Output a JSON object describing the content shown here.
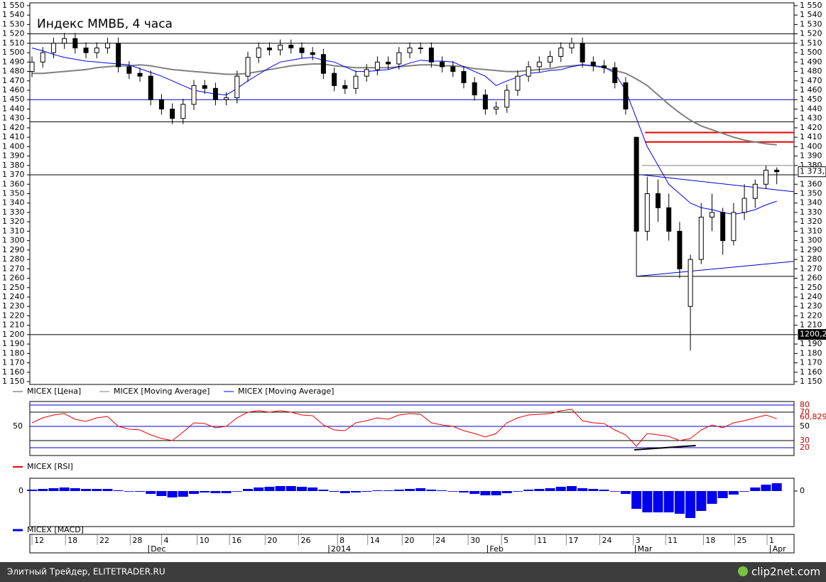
{
  "chart_data": [
    {
      "type": "candlestick",
      "title": "Индекс ММВБ, 4 часа",
      "xlim": [
        -0.2,
        70.6
      ],
      "xticks": [
        {
          "value": 0.2,
          "label": "12"
        },
        {
          "value": 3.3,
          "label": "18"
        },
        {
          "value": 6.25,
          "label": "22"
        },
        {
          "value": 9.3,
          "label": "28"
        },
        {
          "value": 12.2,
          "label": "4"
        },
        {
          "value": 15.5,
          "label": "10"
        },
        {
          "value": 18.5,
          "label": "16"
        },
        {
          "value": 21.8,
          "label": "20"
        },
        {
          "value": 24.9,
          "label": "26"
        },
        {
          "value": 28.5,
          "label": "8"
        },
        {
          "value": 31.3,
          "label": "14"
        },
        {
          "value": 34.5,
          "label": "20"
        },
        {
          "value": 37.4,
          "label": "24"
        },
        {
          "value": 40.6,
          "label": "30"
        },
        {
          "value": 43.7,
          "label": "5"
        },
        {
          "value": 46.8,
          "label": "11"
        },
        {
          "value": 49.7,
          "label": "17"
        },
        {
          "value": 52.8,
          "label": "24"
        },
        {
          "value": 55.9,
          "label": "3"
        },
        {
          "value": 58.9,
          "label": "11"
        },
        {
          "value": 62.4,
          "label": "18"
        },
        {
          "value": 65.3,
          "label": "25"
        },
        {
          "value": 68.3,
          "label": "1"
        }
      ],
      "month_ticks": [
        {
          "value": 11,
          "label": "Dec"
        },
        {
          "value": 27.7,
          "label": "2014"
        },
        {
          "value": 42.4,
          "label": "Feb"
        },
        {
          "value": 56.1,
          "label": "Mar"
        },
        {
          "value": 68.6,
          "label": "Apr"
        }
      ],
      "ylim": [
        1147,
        1553
      ],
      "yticks": [
        {
          "value": 1550,
          "label": "1 550"
        },
        {
          "value": 1540,
          "label": "1 540"
        },
        {
          "value": 1530,
          "label": "1 530"
        },
        {
          "value": 1520,
          "label": "1 520"
        },
        {
          "value": 1510,
          "label": "1 510"
        },
        {
          "value": 1500,
          "label": "1 500"
        },
        {
          "value": 1490,
          "label": "1 490"
        },
        {
          "value": 1480,
          "label": "1 480"
        },
        {
          "value": 1470,
          "label": "1 470"
        },
        {
          "value": 1460,
          "label": "1 460"
        },
        {
          "value": 1450,
          "label": "1 450"
        },
        {
          "value": 1440,
          "label": "1 440"
        },
        {
          "value": 1430,
          "label": "1 430"
        },
        {
          "value": 1420,
          "label": "1 420"
        },
        {
          "value": 1410,
          "label": "1 410"
        },
        {
          "value": 1400,
          "label": "1 400"
        },
        {
          "value": 1390,
          "label": "1 390"
        },
        {
          "value": 1380,
          "label": "1 380"
        },
        {
          "value": 1370,
          "label": "1 370"
        },
        {
          "value": 1360,
          "label": "1 360"
        },
        {
          "value": 1350,
          "label": "1 350"
        },
        {
          "value": 1340,
          "label": "1 340"
        },
        {
          "value": 1330,
          "label": "1 330"
        },
        {
          "value": 1320,
          "label": "1 320"
        },
        {
          "value": 1310,
          "label": "1 310"
        },
        {
          "value": 1300,
          "label": "1 300"
        },
        {
          "value": 1290,
          "label": "1 290"
        },
        {
          "value": 1280,
          "label": "1 280"
        },
        {
          "value": 1270,
          "label": "1 270"
        },
        {
          "value": 1260,
          "label": "1 260"
        },
        {
          "value": 1250,
          "label": "1 250"
        },
        {
          "value": 1240,
          "label": "1 240"
        },
        {
          "value": 1230,
          "label": "1 230"
        },
        {
          "value": 1220,
          "label": "1 220"
        },
        {
          "value": 1210,
          "label": "1 210"
        },
        {
          "value": 1200,
          "label": "1 200"
        },
        {
          "value": 1190,
          "label": "1 190"
        },
        {
          "value": 1180,
          "label": "1 180"
        },
        {
          "value": 1170,
          "label": "1 170"
        },
        {
          "value": 1160,
          "label": "1 160"
        },
        {
          "value": 1150,
          "label": "1 150"
        }
      ],
      "candles": {
        "name": "MICEX [Цена]",
        "color": "#555555",
        "open": [
          1480,
          1490,
          1500,
          1510,
          1515,
          1505,
          1500,
          1505,
          1510,
          1485,
          1478,
          1475,
          1450,
          1440,
          1430,
          1445,
          1465,
          1462,
          1450,
          1452,
          1475,
          1495,
          1505,
          1503,
          1508,
          1505,
          1500,
          1498,
          1478,
          1465,
          1462,
          1475,
          1482,
          1490,
          1488,
          1500,
          1505,
          1505,
          1490,
          1485,
          1480,
          1468,
          1455,
          1440,
          1442,
          1460,
          1475,
          1485,
          1490,
          1496,
          1505,
          1510,
          1490,
          1486,
          1484,
          1468,
          1410,
          1310,
          1350,
          1335,
          1310,
          1230,
          1280,
          1325,
          1330,
          1300,
          1330,
          1345,
          1360,
          1375
        ],
        "high": [
          1496,
          1506,
          1516,
          1521,
          1521,
          1511,
          1511,
          1516,
          1516,
          1491,
          1484,
          1481,
          1456,
          1446,
          1451,
          1471,
          1471,
          1468,
          1458,
          1481,
          1501,
          1511,
          1511,
          1514,
          1514,
          1511,
          1506,
          1504,
          1484,
          1471,
          1481,
          1488,
          1496,
          1496,
          1506,
          1511,
          1511,
          1511,
          1496,
          1491,
          1486,
          1474,
          1461,
          1448,
          1466,
          1481,
          1491,
          1496,
          1502,
          1511,
          1516,
          1516,
          1496,
          1492,
          1490,
          1474,
          1410,
          1368,
          1365,
          1350,
          1320,
          1285,
          1340,
          1350,
          1335,
          1340,
          1360,
          1365,
          1380,
          1378
        ],
        "low": [
          1474,
          1484,
          1494,
          1504,
          1499,
          1494,
          1494,
          1499,
          1479,
          1472,
          1469,
          1444,
          1434,
          1424,
          1424,
          1439,
          1456,
          1444,
          1444,
          1446,
          1469,
          1489,
          1497,
          1497,
          1499,
          1494,
          1492,
          1472,
          1459,
          1456,
          1456,
          1469,
          1476,
          1482,
          1482,
          1494,
          1499,
          1484,
          1479,
          1474,
          1462,
          1449,
          1434,
          1434,
          1436,
          1454,
          1469,
          1479,
          1484,
          1490,
          1499,
          1484,
          1480,
          1478,
          1462,
          1434,
          1262,
          1300,
          1320,
          1300,
          1260,
          1183,
          1275,
          1310,
          1285,
          1295,
          1322,
          1335,
          1355,
          1360
        ],
        "close": [
          1490,
          1500,
          1510,
          1515,
          1505,
          1500,
          1505,
          1510,
          1485,
          1478,
          1475,
          1450,
          1440,
          1430,
          1445,
          1465,
          1462,
          1450,
          1452,
          1475,
          1495,
          1505,
          1503,
          1508,
          1505,
          1500,
          1498,
          1478,
          1465,
          1462,
          1475,
          1482,
          1490,
          1488,
          1500,
          1505,
          1505,
          1490,
          1485,
          1480,
          1468,
          1455,
          1440,
          1442,
          1460,
          1475,
          1485,
          1490,
          1496,
          1505,
          1510,
          1490,
          1486,
          1484,
          1468,
          1440,
          1310,
          1350,
          1335,
          1310,
          1270,
          1280,
          1325,
          1330,
          1300,
          1330,
          1345,
          1360,
          1375,
          1373.3
        ]
      },
      "series": [
        {
          "name": "MICEX [Moving Average]",
          "color": "#808080",
          "values": [
            1478,
            1478,
            1479,
            1480,
            1481,
            1482,
            1484,
            1485,
            1486,
            1486,
            1487,
            1486,
            1484,
            1482,
            1481,
            1480,
            1479,
            1478,
            1477,
            1477,
            1478,
            1480,
            1482,
            1484,
            1486,
            1487,
            1488,
            1488,
            1486,
            1485,
            1484,
            1484,
            1484,
            1484,
            1485,
            1486,
            1487,
            1487,
            1486,
            1486,
            1485,
            1483,
            1482,
            1481,
            1480,
            1480,
            1481,
            1482,
            1483,
            1485,
            1486,
            1487,
            1486,
            1484,
            1481,
            1478,
            1472,
            1465,
            1455,
            1445,
            1436,
            1428,
            1422,
            1418,
            1414,
            1410,
            1407,
            1405,
            1403,
            1402
          ]
        },
        {
          "name": "MICEX [Moving Average]",
          "color": "#0000ff",
          "values": [
            1505,
            1502,
            1498,
            1495,
            1493,
            1491,
            1490,
            1489,
            1488,
            1487,
            1483,
            1479,
            1475,
            1470,
            1465,
            1460,
            1458,
            1456,
            1455,
            1462,
            1470,
            1477,
            1484,
            1490,
            1492,
            1494,
            1495,
            1492,
            1490,
            1485,
            1480,
            1480,
            1481,
            1482,
            1485,
            1489,
            1492,
            1491,
            1491,
            1490,
            1485,
            1480,
            1475,
            1465,
            1470,
            1474,
            1478,
            1479,
            1481,
            1482,
            1485,
            1487,
            1486,
            1485,
            1478,
            1460,
            1430,
            1400,
            1380,
            1360,
            1350,
            1340,
            1335,
            1333,
            1330,
            1328,
            1330,
            1333,
            1338,
            1342
          ]
        }
      ],
      "levels": [
        {
          "value": 1520,
          "color": "#000000",
          "x0": -0.2
        },
        {
          "value": 1510,
          "color": "#000000",
          "x0": -0.2
        },
        {
          "value": 1450,
          "color": "#0000cc",
          "x0": -0.2
        },
        {
          "value": 1426.5,
          "color": "#000000",
          "x0": -0.2
        },
        {
          "value": 1370,
          "color": "#000000",
          "x0": -0.2
        },
        {
          "value": 1200,
          "color": "#000000",
          "x0": -0.2
        },
        {
          "value": 1380,
          "color": "#808080",
          "x0": 56.5
        },
        {
          "value": 1415,
          "color": "#ee0000",
          "x0": 56.8
        },
        {
          "value": 1405,
          "color": "#ee0000",
          "x0": 56.8
        }
      ],
      "trendlines": [
        {
          "x": [
            56.5,
            70.6
          ],
          "y": [
            1370,
            1352
          ],
          "color": "#0000cc"
        },
        {
          "x": [
            56,
            70.6
          ],
          "y": [
            1262,
            1278
          ],
          "color": "#0000cc"
        },
        {
          "x": [
            56,
            70.6
          ],
          "y": [
            1262,
            1262
          ],
          "color": "#000000"
        }
      ],
      "price_tags": [
        {
          "value": 1373.3,
          "label": "1 373,3",
          "dark": false
        },
        {
          "value": 1200.2,
          "label": "1200,2",
          "dark": true
        }
      ]
    },
    {
      "type": "line",
      "name": "MICEX [RSI]",
      "color": "#ee0000",
      "ylim": [
        9,
        85
      ],
      "yticks": [
        80,
        70,
        50,
        30,
        20
      ],
      "left_ticks": [
        50
      ],
      "values": [
        55,
        62,
        66,
        68,
        60,
        57,
        62,
        64,
        50,
        46,
        45,
        38,
        33,
        30,
        42,
        55,
        54,
        48,
        50,
        62,
        70,
        72,
        70,
        72,
        70,
        66,
        65,
        52,
        45,
        44,
        55,
        58,
        62,
        60,
        66,
        68,
        67,
        55,
        52,
        50,
        44,
        40,
        35,
        40,
        55,
        62,
        66,
        67,
        68,
        72,
        74,
        58,
        55,
        54,
        45,
        38,
        22,
        40,
        38,
        36,
        30,
        33,
        45,
        52,
        48,
        55,
        58,
        62,
        66,
        60.829
      ],
      "tag": {
        "value": 60.829,
        "label": "60,829"
      },
      "trendlines": [
        {
          "x": [
            55.8,
            61.5
          ],
          "y": [
            17,
            23
          ],
          "color": "#000000"
        }
      ]
    },
    {
      "type": "bar",
      "name": "MICEX [MACD]",
      "color": "#0000ee",
      "ylim": [
        -50,
        18
      ],
      "yticks": [
        0
      ],
      "values": [
        2,
        3,
        4,
        5,
        4,
        3,
        3,
        3,
        1,
        0,
        -1,
        -4,
        -7,
        -9,
        -8,
        -4,
        -2,
        -3,
        -3,
        0,
        3,
        5,
        6,
        7,
        7,
        6,
        5,
        2,
        -1,
        -3,
        -2,
        -1,
        1,
        1,
        2,
        3,
        4,
        2,
        1,
        0,
        -2,
        -4,
        -6,
        -6,
        -3,
        0,
        2,
        3,
        4,
        6,
        7,
        4,
        3,
        2,
        0,
        -4,
        -25,
        -30,
        -30,
        -30,
        -32,
        -38,
        -28,
        -18,
        -10,
        -5,
        0,
        5,
        9,
        11
      ]
    }
  ],
  "footer": {
    "left": "Элитный Трейдер, ELITETRADER.RU",
    "right": "clip2net.com"
  }
}
